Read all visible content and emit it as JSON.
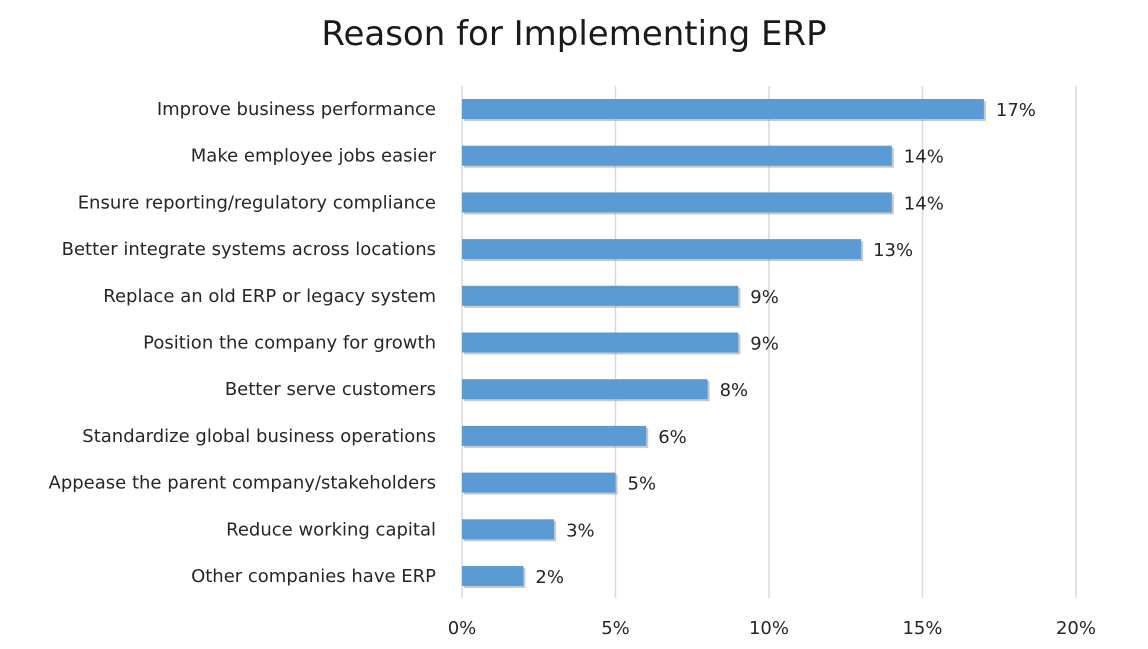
{
  "chart_data": {
    "type": "bar",
    "orientation": "horizontal",
    "title": "Reason for Implementing ERP",
    "categories": [
      "Improve business performance",
      "Make employee jobs easier",
      "Ensure reporting/regulatory compliance",
      "Better integrate systems across locations",
      "Replace an old ERP or legacy system",
      "Position the company for growth",
      "Better serve customers",
      "Standardize global business operations",
      "Appease the parent company/stakeholders",
      "Reduce working capital",
      "Other companies have ERP"
    ],
    "values": [
      17,
      14,
      14,
      13,
      9,
      9,
      8,
      6,
      5,
      3,
      2
    ],
    "data_labels": [
      "17%",
      "14%",
      "14%",
      "13%",
      "9%",
      "9%",
      "8%",
      "6%",
      "5%",
      "3%",
      "2%"
    ],
    "xlim": [
      0,
      20
    ],
    "xticks": [
      0,
      5,
      10,
      15,
      20
    ],
    "xtick_labels": [
      "0%",
      "5%",
      "10%",
      "15%",
      "20%"
    ],
    "grid": "vertical",
    "legend": "none",
    "colors": {
      "bar": "#5b9bd5",
      "bar_shadow": "#9a9a9a",
      "grid": "#d9d9d9",
      "text": "#262626"
    }
  }
}
